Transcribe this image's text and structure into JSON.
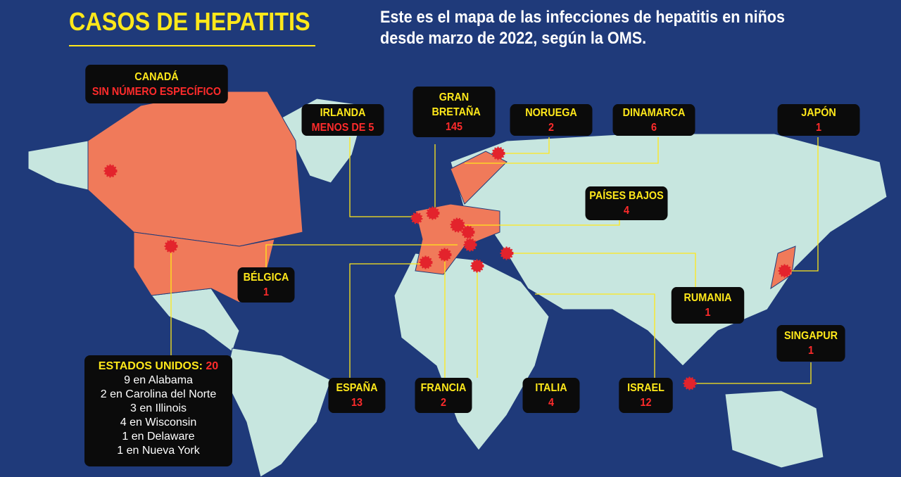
{
  "header": {
    "title": "CASOS DE HEPATITIS",
    "subtitle": "Este es el mapa de las infecciones de hepatitis en niños desde marzo de 2022, según la OMS."
  },
  "labels": [
    {
      "name": "CANADÁ",
      "count": "SIN NÚMERO ESPECÍFICO"
    },
    {
      "name": "IRLANDA",
      "count": "MENOS DE 5"
    },
    {
      "name": "GRAN BRETAÑA",
      "count": 145
    },
    {
      "name": "NORUEGA",
      "count": 2
    },
    {
      "name": "DINAMARCA",
      "count": 6
    },
    {
      "name": "JAPÓN",
      "count": 1
    },
    {
      "name": "PAÍSES BAJOS",
      "count": 4
    },
    {
      "name": "BÉLGICA",
      "count": 1
    },
    {
      "name": "RUMANIA",
      "count": 1
    },
    {
      "name": "SINGAPUR",
      "count": 1
    },
    {
      "name": "ESPAÑA",
      "count": 13
    },
    {
      "name": "FRANCIA",
      "count": 2
    },
    {
      "name": "ITALIA",
      "count": 4
    },
    {
      "name": "ISRAEL",
      "count": 12
    }
  ],
  "usa": {
    "name": "ESTADOS UNIDOS:",
    "count": 20,
    "details": [
      "9 en Alabama",
      "2 en Carolina del Norte",
      "3 en Illinois",
      "4 en Wisconsin",
      "1 en Delaware",
      "1 en Nueva York"
    ]
  }
}
